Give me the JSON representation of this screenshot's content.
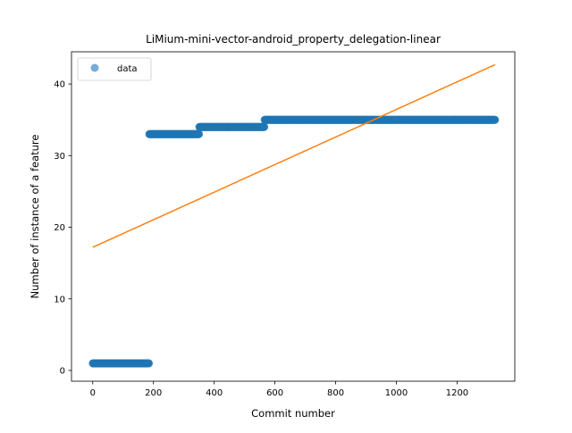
{
  "chart_data": {
    "type": "scatter",
    "title": "LiMium-mini-vector-android_property_delegation-linear",
    "xlabel": "Commit number",
    "ylabel": "Number of instance of a feature",
    "xlim": [
      -70,
      1390
    ],
    "ylim": [
      -1.5,
      44.5
    ],
    "xticks": [
      0,
      200,
      400,
      600,
      800,
      1000,
      1200
    ],
    "yticks": [
      0,
      10,
      20,
      30,
      40
    ],
    "grid": false,
    "legend": {
      "placement": "top-left",
      "entries": [
        "data"
      ]
    },
    "colors": {
      "data": "#1f77b4",
      "fit": "#ff7f0e"
    },
    "series": [
      {
        "name": "data",
        "kind": "scatter",
        "segments": [
          {
            "x_start": 0,
            "x_end": 185,
            "y": 1
          },
          {
            "x_start": 186,
            "x_end": 350,
            "y": 33
          },
          {
            "x_start": 351,
            "x_end": 565,
            "y": 34
          },
          {
            "x_start": 566,
            "x_end": 1325,
            "y": 35
          }
        ]
      },
      {
        "name": "",
        "kind": "line",
        "points": [
          [
            0,
            17.2
          ],
          [
            1325,
            42.7
          ]
        ]
      }
    ]
  }
}
